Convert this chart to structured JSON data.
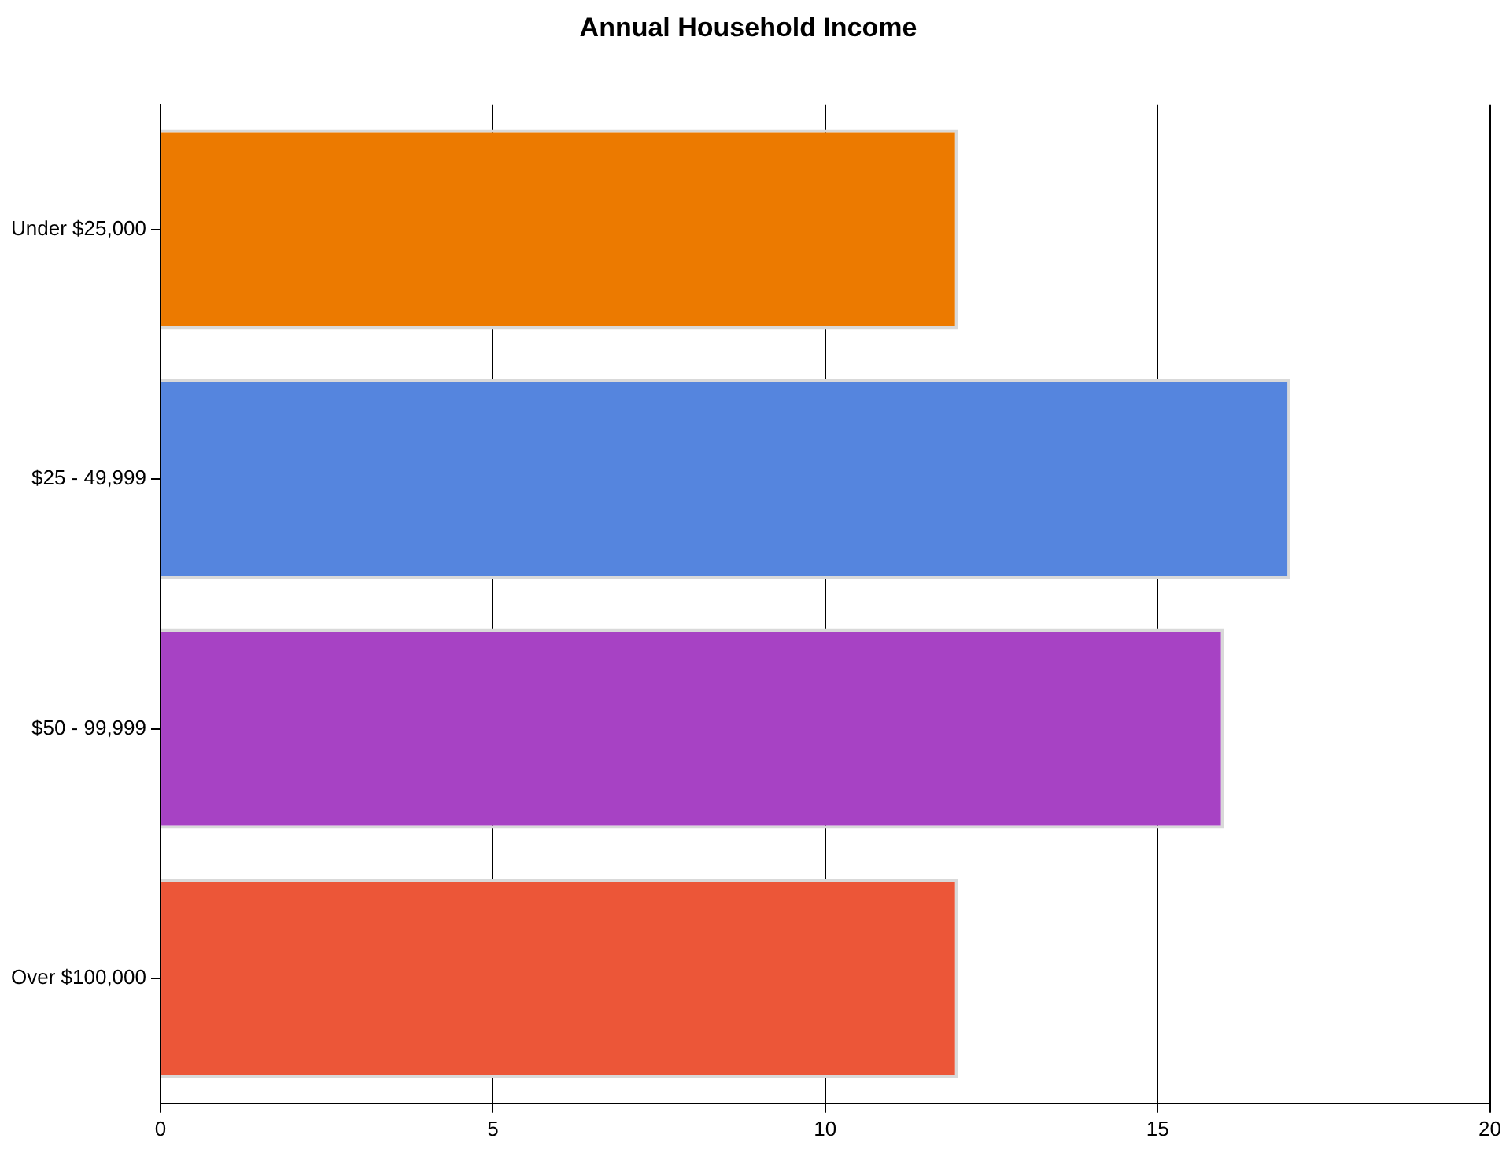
{
  "chart_data": {
    "type": "bar",
    "orientation": "horizontal",
    "title": "Annual Household Income",
    "categories": [
      "Under $25,000",
      "$25 - 49,999",
      "$50 - 99,999",
      "Over $100,000"
    ],
    "values": [
      12,
      17,
      16,
      12
    ],
    "colors": [
      "#ec7a00",
      "#5585de",
      "#a742c4",
      "#ec5638"
    ],
    "xlim": [
      0,
      20
    ],
    "xticks": [
      0,
      5,
      10,
      15,
      20
    ],
    "grid": "x",
    "legend": false
  }
}
